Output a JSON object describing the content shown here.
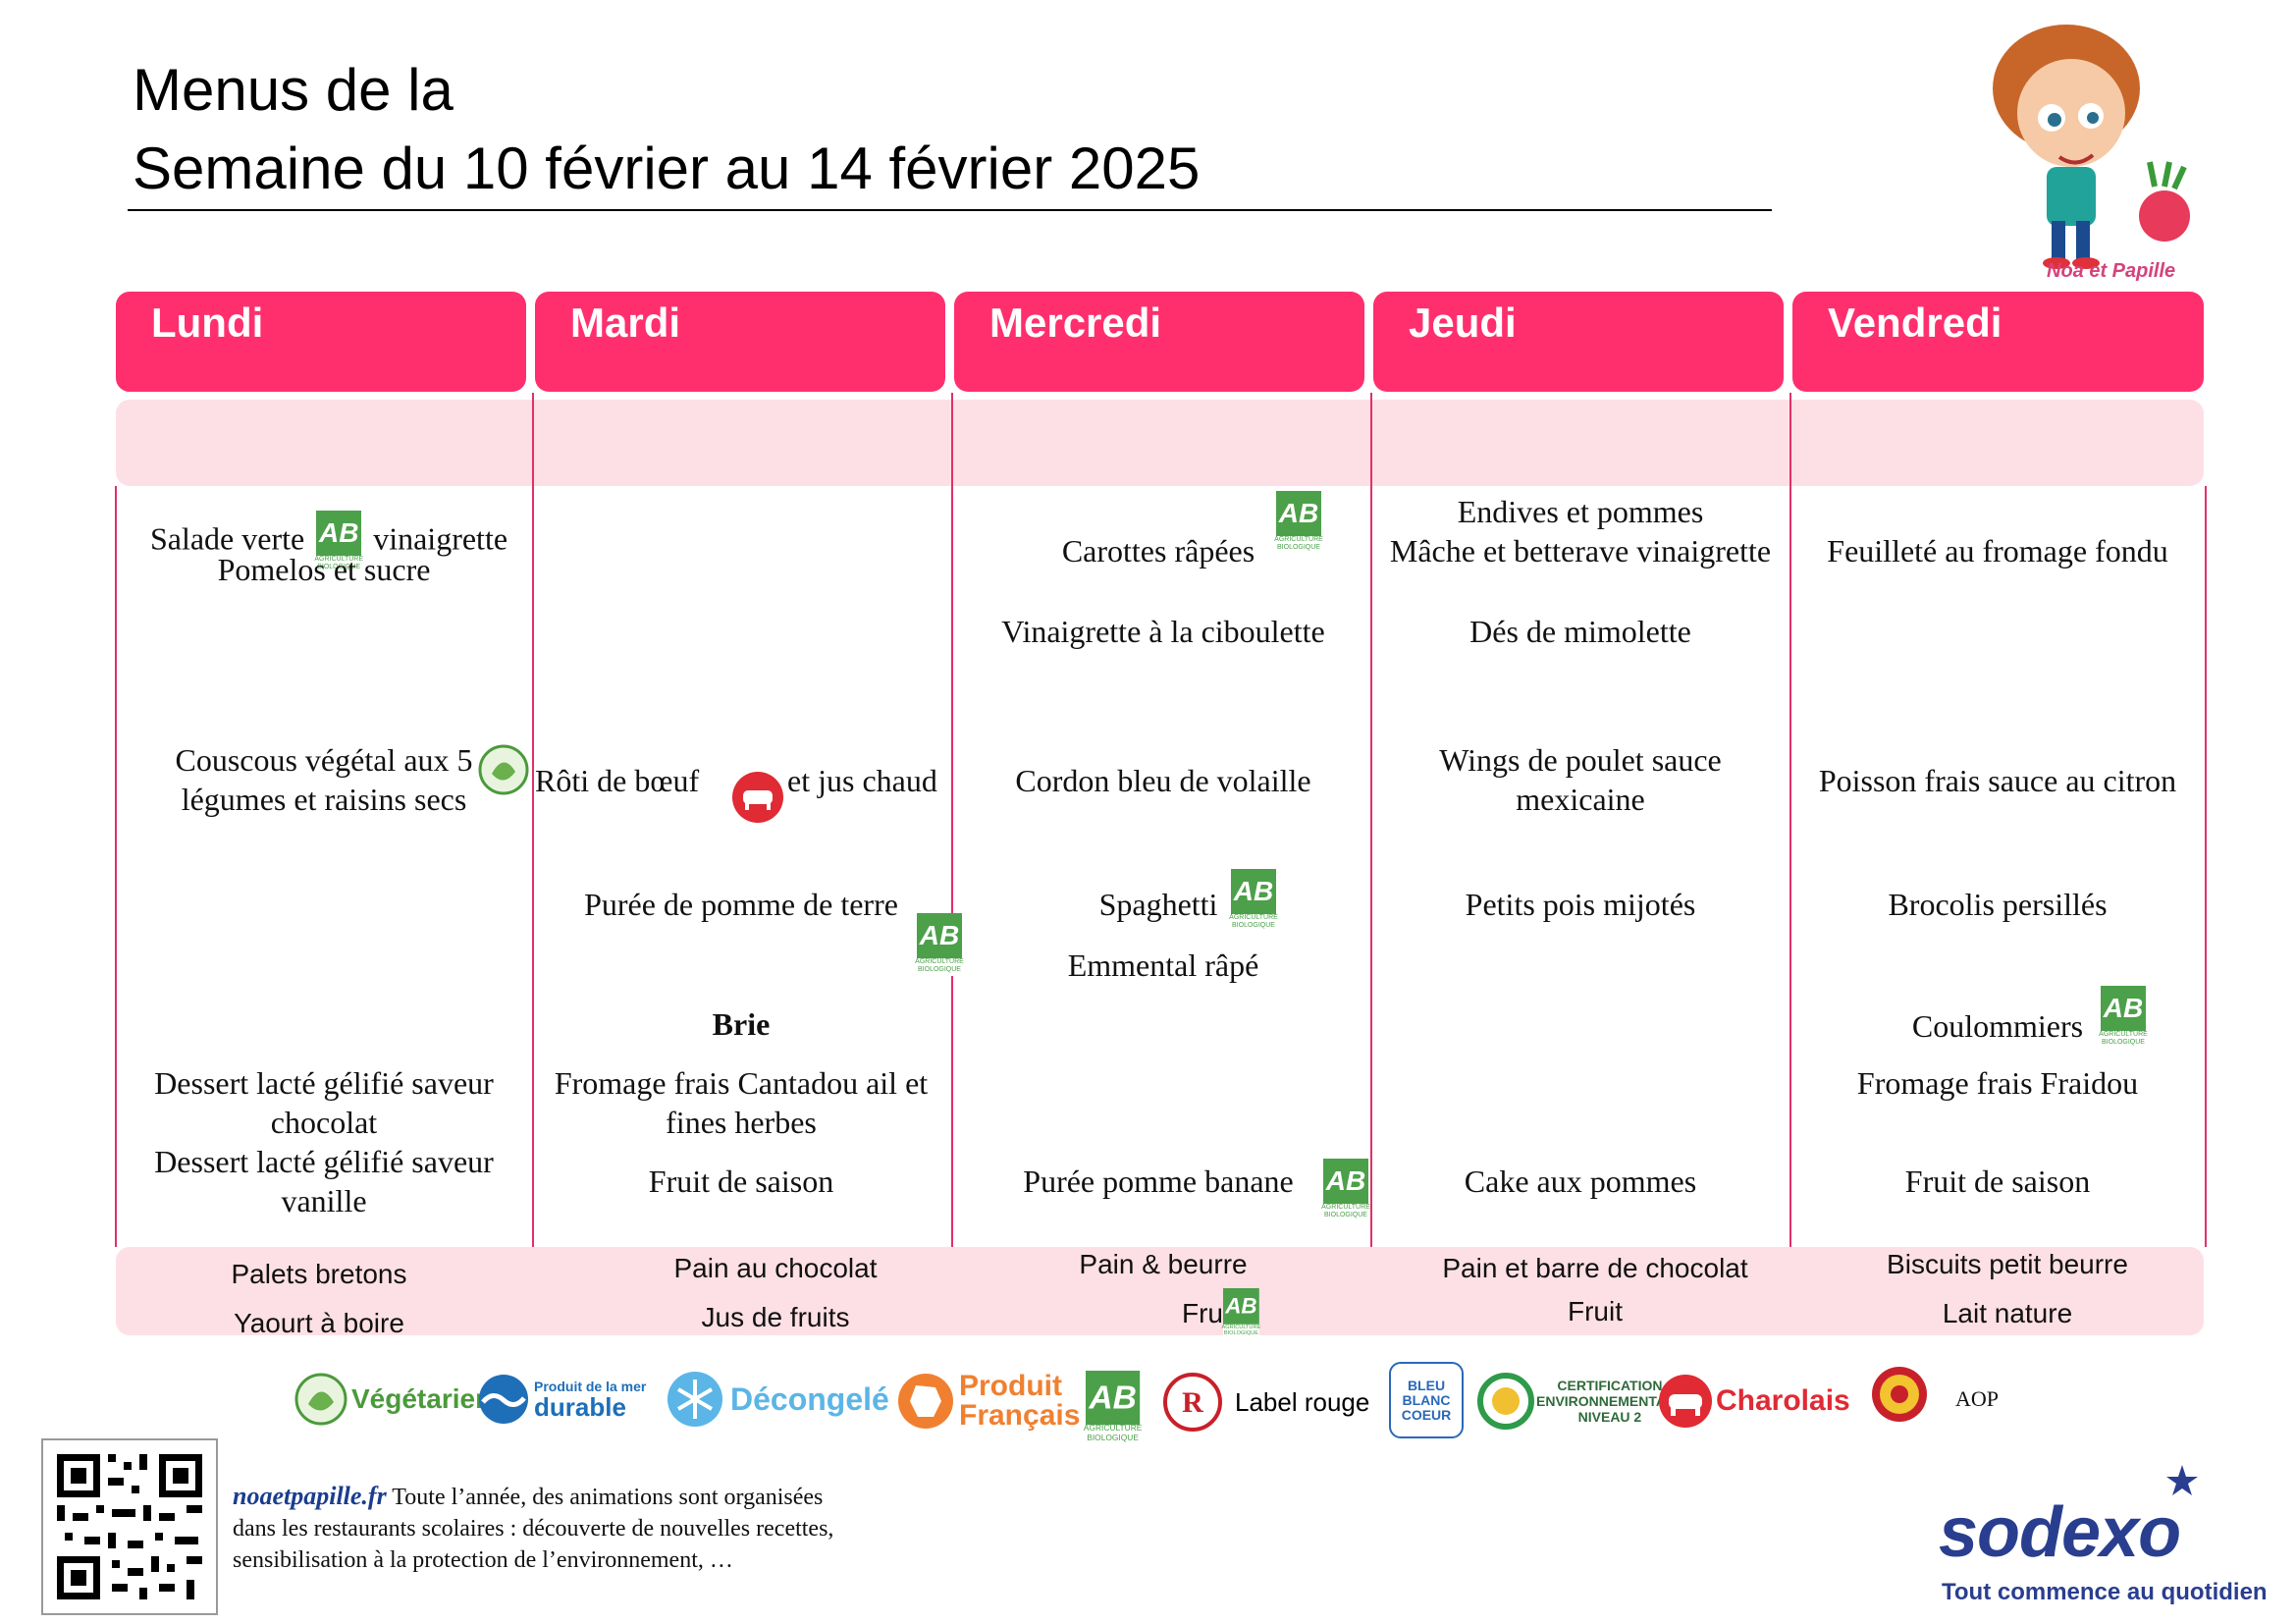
{
  "header": {
    "title_line1": "Menus de la",
    "title_line2": "Semaine du 10 février au 14 février 2025",
    "brand_mascot": "Noa et Papille"
  },
  "days": [
    {
      "name": "Lundi"
    },
    {
      "name": "Mardi"
    },
    {
      "name": "Mercredi"
    },
    {
      "name": "Jeudi"
    },
    {
      "name": "Vendredi"
    }
  ],
  "menu": {
    "lundi": {
      "starter1a": "Salade verte",
      "starter1b": "vinaigrette",
      "starter2": "Pomelos et sucre",
      "main": "Couscous végétal aux 5 légumes et raisins secs",
      "dessert1": "Dessert lacté gélifié saveur chocolat",
      "dessert2": "Dessert lacté gélifié saveur vanille"
    },
    "mardi": {
      "main_a": "Rôti de bœuf",
      "main_b": "et jus chaud",
      "side": "Purée de pomme de terre",
      "cheese": "Brie",
      "dairy": "Fromage frais Cantadou ail et fines herbes",
      "dessert": "Fruit de saison"
    },
    "mercredi": {
      "starter": "Carottes râpées",
      "dressing": "Vinaigrette à la ciboulette",
      "main": "Cordon bleu de volaille",
      "side": "Spaghetti",
      "cheese": "Emmental râpé",
      "dessert": "Purée pomme banane"
    },
    "jeudi": {
      "starter1": "Endives et pommes",
      "starter2": "Mâche et betterave vinaigrette",
      "starter3": "Dés de mimolette",
      "main": "Wings de poulet sauce mexicaine",
      "side": "Petits pois mijotés",
      "dessert": "Cake aux pommes"
    },
    "vendredi": {
      "starter": "Feuilleté au fromage fondu",
      "main": "Poisson frais sauce au citron",
      "side": "Brocolis persillés",
      "cheese": "Coulommiers",
      "dairy": "Fromage frais Fraidou",
      "dessert": "Fruit de saison"
    }
  },
  "snacks": {
    "lundi": [
      "Palets bretons",
      "Yaourt à boire"
    ],
    "mardi": [
      "Pain au chocolat",
      "Jus de fruits"
    ],
    "mercredi": [
      "Pain & beurre",
      "Fruit"
    ],
    "jeudi": [
      "Pain et barre de chocolat",
      "Fruit"
    ],
    "vendredi": [
      "Biscuits petit beurre",
      "Lait nature"
    ]
  },
  "labels": {
    "ab_text": "AB",
    "ab_sub": "AGRICULTURE BIOLOGIQUE",
    "vegetarien": "Végétarien",
    "mer_durable_1": "Produit de la mer",
    "mer_durable_2": "durable",
    "decongele": "Décongelé",
    "produit_1": "Produit",
    "produit_2": "Français",
    "label_rouge": "Label rouge",
    "bbc_1": "BLEU",
    "bbc_2": "BLANC",
    "bbc_3": "COEUR",
    "cert_1": "CERTIFICATION",
    "cert_2": "ENVIRONNEMENTALE",
    "cert_3": "NIVEAU 2",
    "charolais": "Charolais",
    "aop": "AOP"
  },
  "footer": {
    "link": "noaetpapille.fr",
    "text1": " Toute l’année, des animations sont organisées",
    "text2": "dans les restaurants scolaires : découverte de nouvelles recettes,",
    "text3": "sensibilisation à la protection de l’environnement, …",
    "brand": "sodexo",
    "tagline": "Tout commence au quotidien"
  },
  "colors": {
    "accent": "#ff2f6e",
    "band": "#fde0e5",
    "bio_green": "#4ca04a",
    "sodexo_blue": "#2a3e8f"
  }
}
